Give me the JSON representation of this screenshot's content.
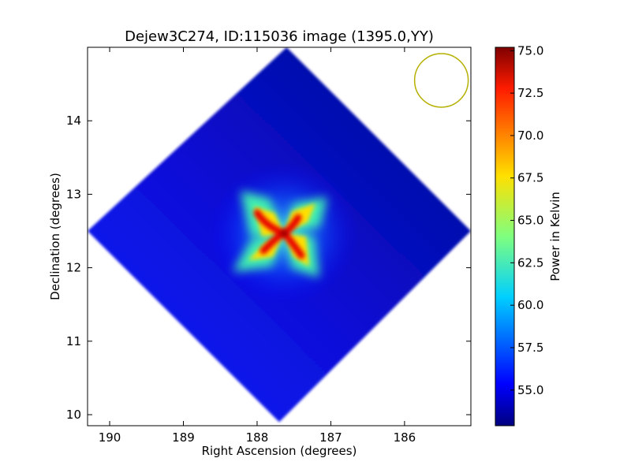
{
  "chart_data": {
    "type": "heatmap",
    "title": "Dejew3C274, ID:115036 image (1395.0,YY)",
    "xlabel": "Right Ascension (degrees)",
    "ylabel": "Declination (degrees)",
    "x_range": [
      190.3,
      185.1
    ],
    "y_range": [
      9.85,
      15.0
    ],
    "x_ticks": [
      190,
      189,
      188,
      187,
      186
    ],
    "y_ticks": [
      10,
      11,
      12,
      13,
      14
    ],
    "colorbar": {
      "label": "Power in Kelvin",
      "range": [
        52.9,
        75.2
      ],
      "ticks": [
        55.0,
        57.5,
        60.0,
        62.5,
        65.0,
        67.5,
        70.0,
        72.5,
        75.0
      ],
      "tick_labels": [
        "55.0",
        "57.5",
        "60.0",
        "62.5",
        "65.0",
        "67.5",
        "70.0",
        "72.5",
        "75.0"
      ],
      "colormap": "jet"
    },
    "map": {
      "shape": "diamond",
      "corners_ra_dec": [
        [
          187.6,
          15.0
        ],
        [
          185.1,
          12.5
        ],
        [
          187.7,
          9.9
        ],
        [
          190.3,
          12.5
        ]
      ],
      "background_level": 54.0,
      "source": {
        "ra": 187.7,
        "dec": 12.4,
        "peak": 75.0,
        "pattern": "four-arm pinwheel"
      }
    },
    "beam_circle": {
      "ra": 185.5,
      "dec": 14.55,
      "color": "#b5b000"
    },
    "grid": false
  }
}
